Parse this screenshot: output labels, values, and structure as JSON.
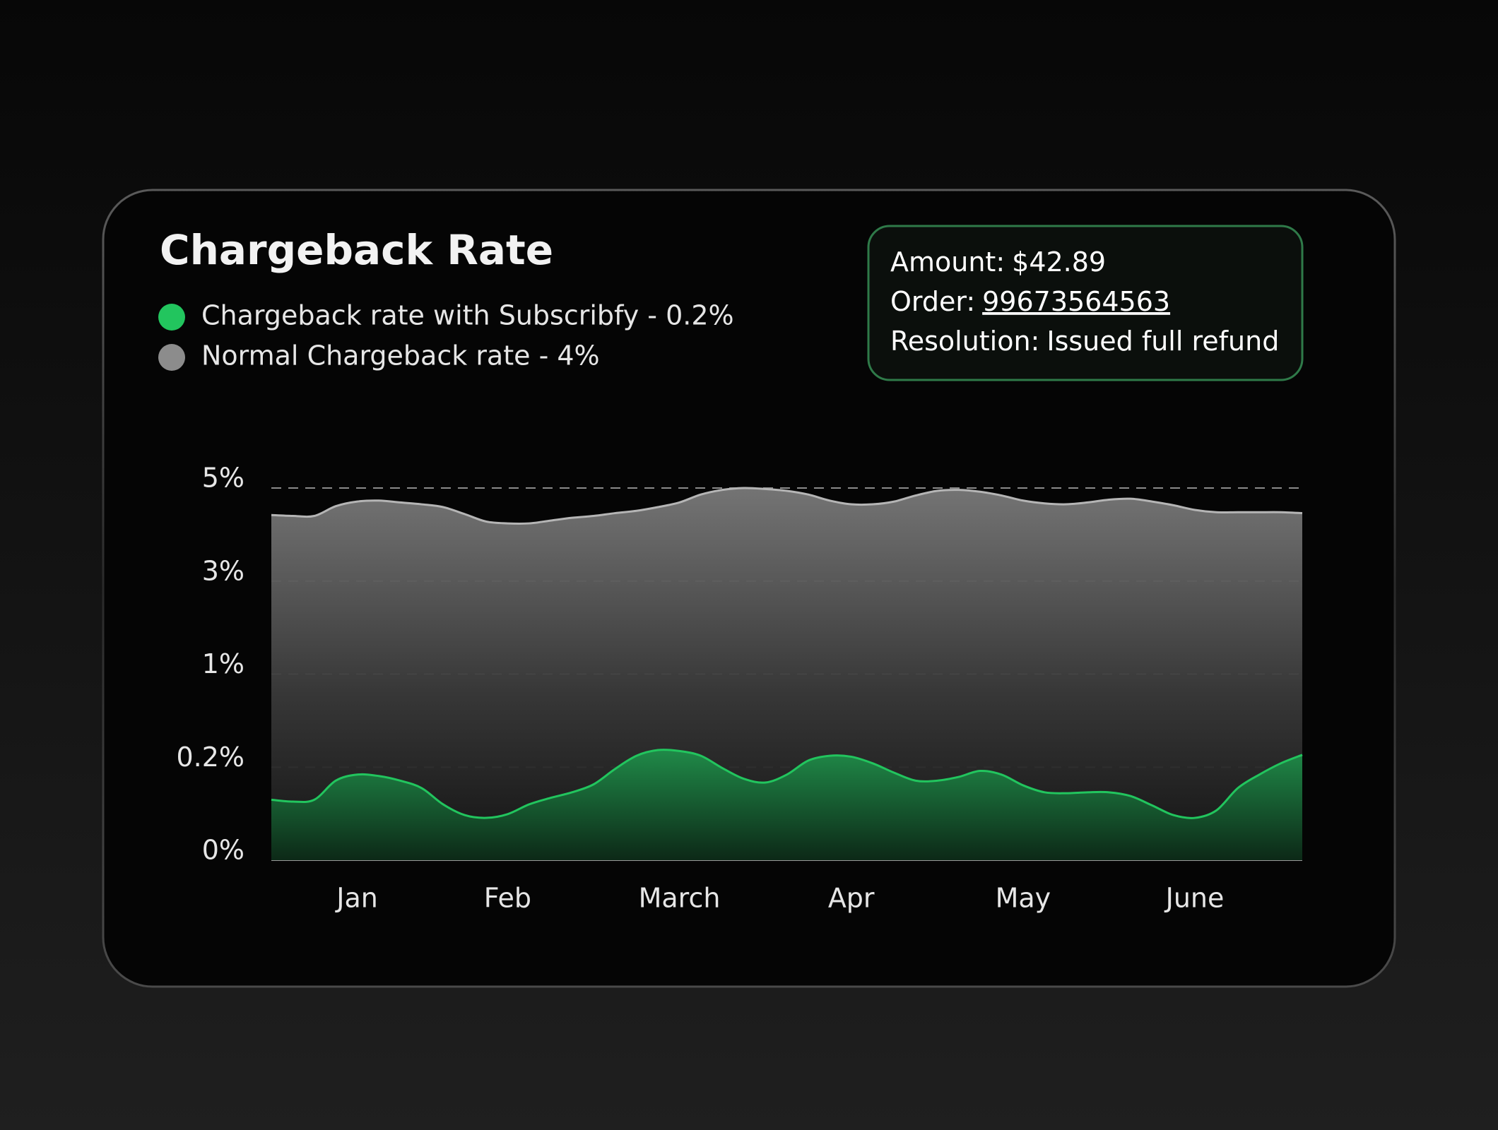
{
  "chart_data": {
    "type": "area",
    "title": "Chargeback Rate",
    "categories": [
      null,
      null,
      null,
      null,
      "Jan",
      null,
      null,
      null,
      null,
      null,
      null,
      "Feb",
      null,
      null,
      null,
      null,
      null,
      null,
      null,
      "March",
      null,
      null,
      null,
      null,
      null,
      null,
      null,
      "Apr",
      null,
      null,
      null,
      null,
      null,
      null,
      null,
      "May",
      null,
      null,
      null,
      null,
      null,
      null,
      null,
      "June",
      null,
      null,
      null,
      null,
      null
    ],
    "series": [
      {
        "name": "Normal Chargeback rate - 4%",
        "color": "#8c8c8c",
        "values": [
          4.42,
          4.4,
          4.4,
          4.61,
          4.71,
          4.73,
          4.69,
          4.65,
          4.59,
          4.44,
          4.28,
          4.24,
          4.24,
          4.3,
          4.36,
          4.4,
          4.46,
          4.51,
          4.59,
          4.69,
          4.86,
          4.96,
          5.0,
          4.98,
          4.94,
          4.86,
          4.73,
          4.65,
          4.65,
          4.71,
          4.84,
          4.94,
          4.96,
          4.92,
          4.84,
          4.73,
          4.67,
          4.65,
          4.69,
          4.75,
          4.77,
          4.71,
          4.63,
          4.53,
          4.48,
          4.48,
          4.48,
          4.48,
          4.46
        ]
      },
      {
        "name": "Chargeback rate with Subscribfy - 0.2%",
        "color": "#22c55e",
        "values": [
          0.13,
          0.126,
          0.13,
          0.171,
          0.184,
          0.181,
          0.171,
          0.155,
          0.12,
          0.097,
          0.091,
          0.099,
          0.12,
          0.134,
          0.146,
          0.163,
          0.196,
          0.298,
          0.347,
          0.339,
          0.298,
          0.198,
          0.175,
          0.167,
          0.184,
          0.257,
          0.298,
          0.29,
          0.233,
          0.188,
          0.171,
          0.171,
          0.179,
          0.192,
          0.184,
          0.161,
          0.146,
          0.144,
          0.146,
          0.146,
          0.138,
          0.118,
          0.097,
          0.091,
          0.107,
          0.155,
          0.184,
          0.233,
          0.306
        ]
      }
    ],
    "ylim": [
      0,
      5
    ],
    "yticks": [
      {
        "value": 0,
        "label": "0%"
      },
      {
        "value": 0.2,
        "label": "0.2%"
      },
      {
        "value": 1,
        "label": "1%"
      },
      {
        "value": 3,
        "label": "3%"
      },
      {
        "value": 5,
        "label": "5%"
      }
    ],
    "grid": true
  },
  "tooltip": {
    "lines": [
      {
        "label": "Amount:",
        "value": "$42.89"
      },
      {
        "label": "Order:",
        "value": "99673564563"
      },
      {
        "label": "Resolution:",
        "value": "Issued full refund"
      }
    ]
  }
}
